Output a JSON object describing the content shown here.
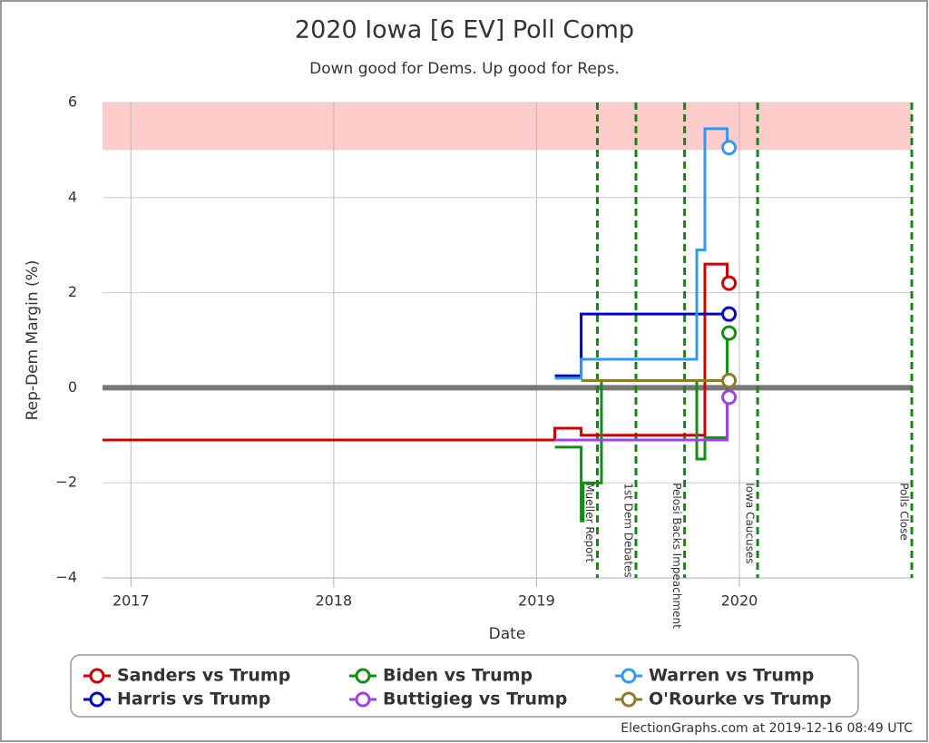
{
  "chart_data": {
    "type": "step-line",
    "title": "2020 Iowa [6 EV] Poll Comp",
    "subtitle": "Down good for Dems. Up good for Reps.",
    "x_label": "Date",
    "y_label": "Rep-Dem Margin (%)",
    "xlim": [
      2016.86,
      2020.85
    ],
    "xticks": [
      2017,
      2018,
      2019,
      2020
    ],
    "ylim": [
      -4,
      6
    ],
    "yticks": [
      {
        "value": -4,
        "label": "−4"
      },
      {
        "value": -2,
        "label": "−2"
      },
      0,
      2,
      4,
      6
    ],
    "grid": true,
    "zero_line": true,
    "band": {
      "from": 5,
      "to": 6,
      "color": "#ffcccc"
    },
    "events": [
      {
        "label": "Mueller Report",
        "x": 2019.3
      },
      {
        "label": "1st Dem Debates",
        "x": 2019.49
      },
      {
        "label": "Pelosi Backs Impeachment",
        "x": 2019.73
      },
      {
        "label": "Iowa Caucuses",
        "x": 2020.09
      },
      {
        "label": "Polls Close",
        "x": 2020.85
      }
    ],
    "series": [
      {
        "name": "Sanders vs Trump",
        "color": "#cc0000",
        "x": [
          2016.86,
          2019.09,
          2019.22,
          2019.83,
          2019.94
        ],
        "values": [
          -1.1,
          -0.85,
          -1.0,
          2.6,
          2.2
        ]
      },
      {
        "name": "Harris vs Trump",
        "color": "#0000cc",
        "x": [
          2019.09,
          2019.22,
          2019.94
        ],
        "values": [
          0.25,
          1.55,
          1.55
        ]
      },
      {
        "name": "Biden vs Trump",
        "color": "#109010",
        "x": [
          2019.09,
          2019.22,
          2019.23,
          2019.32,
          2019.79,
          2019.83,
          2019.94
        ],
        "values": [
          -1.25,
          -2.8,
          -2.0,
          0.15,
          -1.5,
          -1.05,
          1.15
        ]
      },
      {
        "name": "Buttigieg vs Trump",
        "color": "#a040f0",
        "x": [
          2019.09,
          2019.94
        ],
        "values": [
          -1.1,
          -0.2
        ]
      },
      {
        "name": "Warren vs Trump",
        "color": "#3399ee",
        "x": [
          2019.09,
          2019.22,
          2019.79,
          2019.83,
          2019.94
        ],
        "values": [
          0.2,
          0.6,
          2.9,
          5.45,
          5.05
        ]
      },
      {
        "name": "O'Rourke vs Trump",
        "color": "#8c7c2c",
        "x": [
          2019.22,
          2019.94
        ],
        "values": [
          0.15,
          0.15
        ]
      }
    ],
    "footer": "ElectionGraphs.com at 2019-12-16 08:49 UTC"
  }
}
